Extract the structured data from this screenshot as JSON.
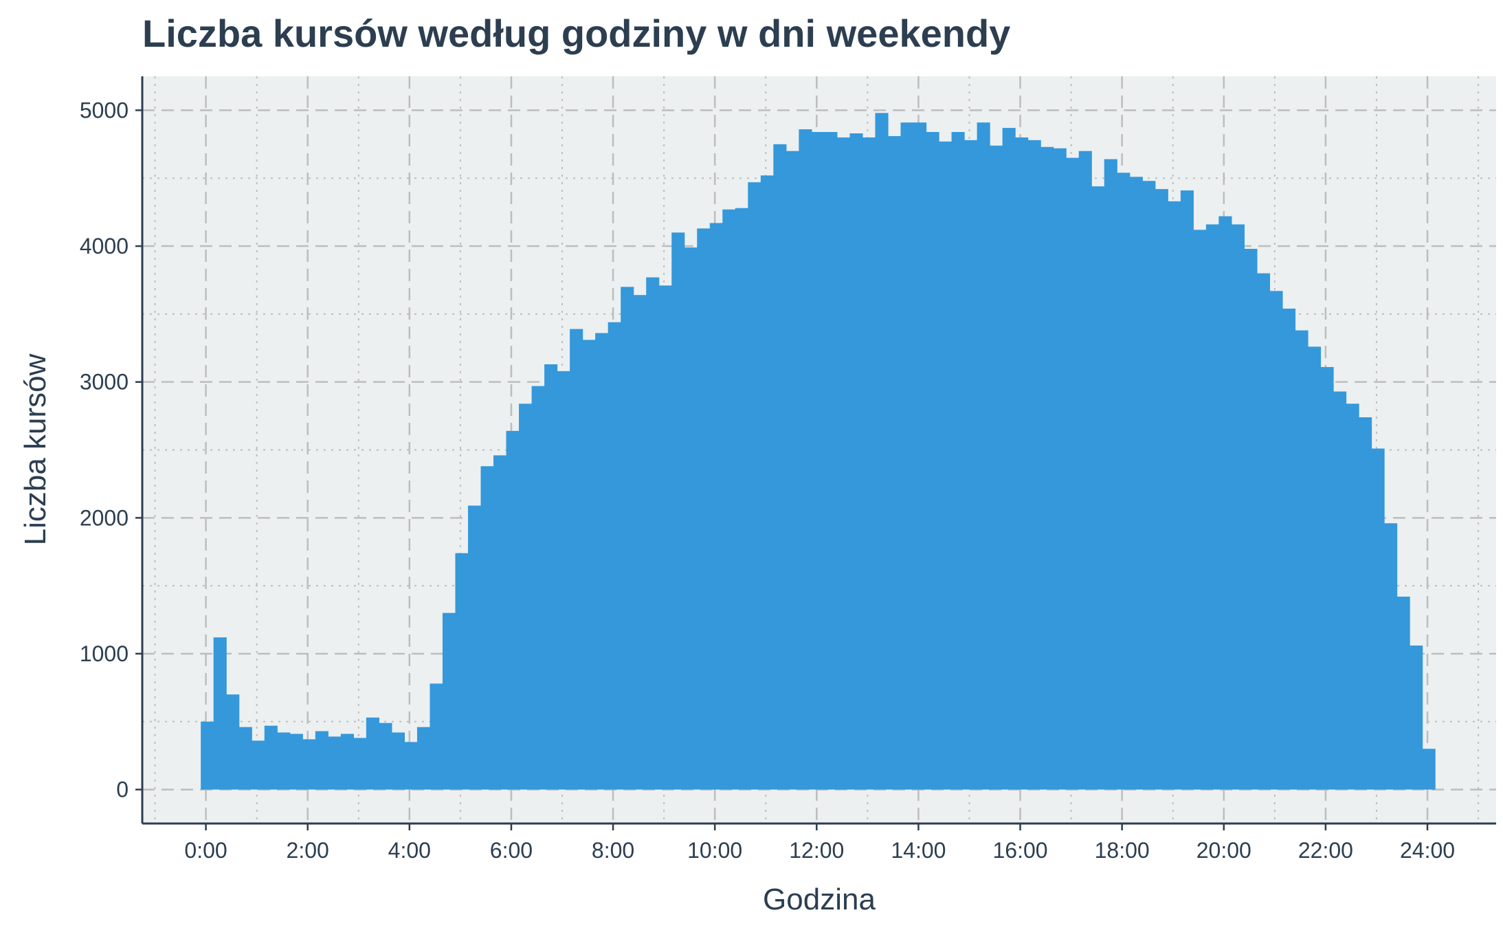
{
  "chart_data": {
    "type": "bar",
    "title": "Liczba kursów według godziny w dni weekendy",
    "xlabel": "Godzina",
    "ylabel": "Liczba kursów",
    "bin_width_hours": 0.25,
    "x_start_hour": -0.1,
    "xlim": [
      -1.25,
      25.35
    ],
    "ylim": [
      -250,
      5250
    ],
    "x_ticks": [
      "0:00",
      "2:00",
      "4:00",
      "6:00",
      "8:00",
      "10:00",
      "12:00",
      "14:00",
      "16:00",
      "18:00",
      "20:00",
      "22:00",
      "24:00"
    ],
    "y_ticks": [
      "0",
      "1000",
      "2000",
      "3000",
      "4000",
      "5000"
    ],
    "grid": true,
    "colors": {
      "bar": "#3498db",
      "panel": "#ecf0f1",
      "grid": "#bdbdbd",
      "text": "#2c3e50"
    },
    "values": [
      500,
      1120,
      700,
      460,
      360,
      470,
      420,
      410,
      370,
      430,
      390,
      410,
      380,
      530,
      490,
      420,
      350,
      460,
      780,
      1300,
      1740,
      2090,
      2380,
      2460,
      2640,
      2840,
      2970,
      3130,
      3080,
      3390,
      3310,
      3360,
      3440,
      3700,
      3640,
      3770,
      3710,
      4100,
      3990,
      4130,
      4170,
      4270,
      4280,
      4470,
      4520,
      4750,
      4700,
      4860,
      4840,
      4840,
      4800,
      4830,
      4800,
      4980,
      4810,
      4910,
      4910,
      4840,
      4770,
      4840,
      4780,
      4910,
      4740,
      4870,
      4800,
      4780,
      4730,
      4720,
      4650,
      4700,
      4440,
      4640,
      4540,
      4510,
      4480,
      4420,
      4330,
      4410,
      4120,
      4160,
      4220,
      4160,
      3980,
      3800,
      3670,
      3540,
      3380,
      3260,
      3110,
      2930,
      2840,
      2740,
      2510,
      1960,
      1420,
      1060,
      300
    ]
  }
}
